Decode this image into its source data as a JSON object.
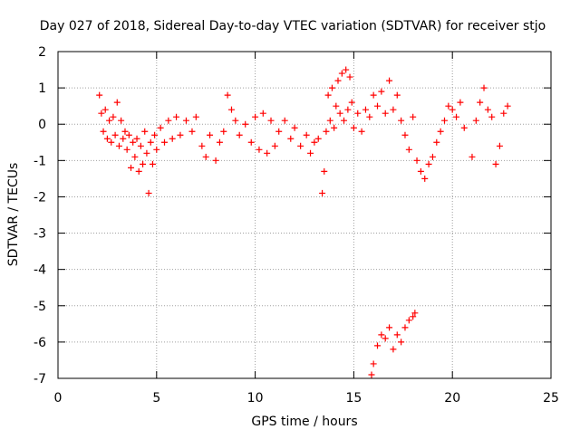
{
  "chart_data": {
    "type": "scatter",
    "title": "Day 027 of 2018, Sidereal Day-to-day VTEC variation (SDTVAR) for receiver stjo",
    "xlabel": "GPS time / hours",
    "ylabel": "SDTVAR / TECUs",
    "xlim": [
      0,
      25
    ],
    "ylim": [
      -7,
      2
    ],
    "grid": true,
    "marker": "+",
    "color": "#ff0000",
    "x_ticks": [
      0,
      5,
      10,
      15,
      20,
      25
    ],
    "x_tick_labels": [
      "0",
      "5",
      "10",
      "15",
      "20",
      "25"
    ],
    "y_ticks": [
      2,
      1,
      0,
      -1,
      -2,
      -3,
      -4,
      -5,
      -6,
      -7
    ],
    "y_tick_labels": [
      "2",
      "1",
      "0",
      "-1",
      "-2",
      "-3",
      "-4",
      "-5",
      "-6",
      "-7"
    ],
    "series": [
      {
        "name": "stjo",
        "points": [
          [
            2.1,
            0.8
          ],
          [
            2.2,
            0.3
          ],
          [
            2.3,
            -0.2
          ],
          [
            2.4,
            0.4
          ],
          [
            2.5,
            -0.4
          ],
          [
            2.6,
            0.1
          ],
          [
            2.7,
            -0.5
          ],
          [
            2.8,
            0.2
          ],
          [
            2.9,
            -0.3
          ],
          [
            3.0,
            0.6
          ],
          [
            3.1,
            -0.6
          ],
          [
            3.2,
            0.1
          ],
          [
            3.3,
            -0.4
          ],
          [
            3.4,
            -0.2
          ],
          [
            3.5,
            -0.7
          ],
          [
            3.6,
            -0.3
          ],
          [
            3.7,
            -1.2
          ],
          [
            3.8,
            -0.5
          ],
          [
            3.9,
            -0.9
          ],
          [
            4.0,
            -0.4
          ],
          [
            4.1,
            -1.3
          ],
          [
            4.2,
            -0.6
          ],
          [
            4.3,
            -1.1
          ],
          [
            4.4,
            -0.2
          ],
          [
            4.5,
            -0.8
          ],
          [
            4.6,
            -1.9
          ],
          [
            4.7,
            -0.5
          ],
          [
            4.8,
            -1.1
          ],
          [
            4.9,
            -0.3
          ],
          [
            5.0,
            -0.7
          ],
          [
            5.2,
            -0.1
          ],
          [
            5.4,
            -0.5
          ],
          [
            5.6,
            0.1
          ],
          [
            5.8,
            -0.4
          ],
          [
            6.0,
            0.2
          ],
          [
            6.2,
            -0.3
          ],
          [
            6.5,
            0.1
          ],
          [
            6.8,
            -0.2
          ],
          [
            7.0,
            0.2
          ],
          [
            7.3,
            -0.6
          ],
          [
            7.5,
            -0.9
          ],
          [
            7.7,
            -0.3
          ],
          [
            8.0,
            -1.0
          ],
          [
            8.2,
            -0.5
          ],
          [
            8.4,
            -0.2
          ],
          [
            8.6,
            0.8
          ],
          [
            8.8,
            0.4
          ],
          [
            9.0,
            0.1
          ],
          [
            9.2,
            -0.3
          ],
          [
            9.5,
            0.0
          ],
          [
            9.8,
            -0.5
          ],
          [
            10.0,
            0.2
          ],
          [
            10.2,
            -0.7
          ],
          [
            10.4,
            0.3
          ],
          [
            10.6,
            -0.8
          ],
          [
            10.8,
            0.1
          ],
          [
            11.0,
            -0.6
          ],
          [
            11.2,
            -0.2
          ],
          [
            11.5,
            0.1
          ],
          [
            11.8,
            -0.4
          ],
          [
            12.0,
            -0.1
          ],
          [
            12.3,
            -0.6
          ],
          [
            12.6,
            -0.3
          ],
          [
            12.8,
            -0.8
          ],
          [
            13.0,
            -0.5
          ],
          [
            13.2,
            -0.4
          ],
          [
            13.4,
            -1.9
          ],
          [
            13.5,
            -1.3
          ],
          [
            13.6,
            -0.2
          ],
          [
            13.7,
            0.8
          ],
          [
            13.8,
            0.1
          ],
          [
            13.9,
            1.0
          ],
          [
            14.0,
            -0.1
          ],
          [
            14.1,
            0.5
          ],
          [
            14.2,
            1.2
          ],
          [
            14.3,
            0.3
          ],
          [
            14.4,
            1.4
          ],
          [
            14.5,
            0.1
          ],
          [
            14.6,
            1.5
          ],
          [
            14.7,
            0.4
          ],
          [
            14.8,
            1.3
          ],
          [
            14.9,
            0.6
          ],
          [
            15.0,
            -0.1
          ],
          [
            15.2,
            0.3
          ],
          [
            15.4,
            -0.2
          ],
          [
            15.6,
            0.4
          ],
          [
            15.8,
            0.2
          ],
          [
            16.0,
            0.8
          ],
          [
            16.2,
            0.5
          ],
          [
            16.4,
            0.9
          ],
          [
            16.6,
            0.3
          ],
          [
            16.8,
            1.2
          ],
          [
            17.0,
            0.4
          ],
          [
            17.2,
            0.8
          ],
          [
            17.4,
            0.1
          ],
          [
            17.6,
            -0.3
          ],
          [
            17.8,
            -0.7
          ],
          [
            18.0,
            0.2
          ],
          [
            18.2,
            -1.0
          ],
          [
            18.4,
            -1.3
          ],
          [
            18.6,
            -1.5
          ],
          [
            18.8,
            -1.1
          ],
          [
            19.0,
            -0.9
          ],
          [
            19.2,
            -0.5
          ],
          [
            19.4,
            -0.2
          ],
          [
            19.6,
            0.1
          ],
          [
            19.8,
            0.5
          ],
          [
            20.0,
            0.4
          ],
          [
            20.2,
            0.2
          ],
          [
            20.4,
            0.6
          ],
          [
            20.6,
            -0.1
          ],
          [
            21.0,
            -0.9
          ],
          [
            21.2,
            0.1
          ],
          [
            21.4,
            0.6
          ],
          [
            21.6,
            1.0
          ],
          [
            21.8,
            0.4
          ],
          [
            22.0,
            0.2
          ],
          [
            22.2,
            -1.1
          ],
          [
            22.4,
            -0.6
          ],
          [
            22.6,
            0.3
          ],
          [
            22.8,
            0.5
          ],
          [
            15.9,
            -6.9
          ],
          [
            16.0,
            -6.6
          ],
          [
            16.2,
            -6.1
          ],
          [
            16.4,
            -5.8
          ],
          [
            16.6,
            -5.9
          ],
          [
            16.8,
            -5.6
          ],
          [
            17.0,
            -6.2
          ],
          [
            17.2,
            -5.8
          ],
          [
            17.4,
            -6.0
          ],
          [
            17.6,
            -5.6
          ],
          [
            17.8,
            -5.4
          ],
          [
            18.0,
            -5.3
          ],
          [
            18.1,
            -5.2
          ]
        ]
      }
    ]
  }
}
